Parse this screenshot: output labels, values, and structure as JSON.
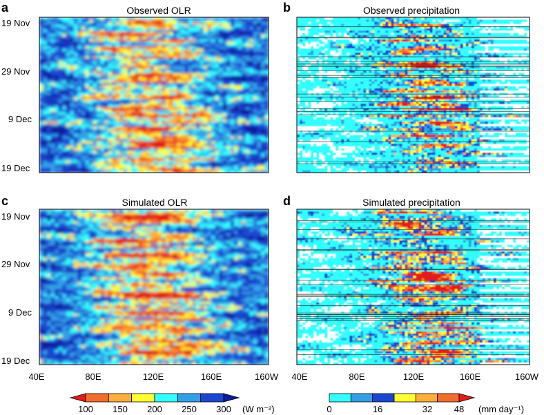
{
  "figure": {
    "panels": [
      {
        "letter": "a",
        "title": "Observed OLR",
        "variable": "OLR",
        "source": "observed"
      },
      {
        "letter": "b",
        "title": "Observed precipitation",
        "variable": "precipitation",
        "source": "observed"
      },
      {
        "letter": "c",
        "title": "Simulated OLR",
        "variable": "OLR",
        "source": "simulated"
      },
      {
        "letter": "d",
        "title": "Simulated precipitation",
        "variable": "precipitation",
        "source": "simulated"
      }
    ],
    "y_ticks": [
      "19 Nov",
      "29 Nov",
      "9 Dec",
      "19 Dec"
    ],
    "x_ticks": [
      "40E",
      "80E",
      "120E",
      "160E",
      "160W"
    ],
    "olr_colorbar": {
      "ticks": [
        "100",
        "150",
        "200",
        "250",
        "300"
      ],
      "unit": "(W m⁻²)",
      "colors": [
        "#e31a1c",
        "#f46d2a",
        "#fdae3a",
        "#ffff33",
        "#33ffff",
        "#33a0e6",
        "#1a46d1",
        "#0d1ba0"
      ]
    },
    "precip_colorbar": {
      "ticks": [
        "0",
        "16",
        "32",
        "48"
      ],
      "unit": "(mm day⁻¹)",
      "colors": [
        "#33ffff",
        "#33a0e6",
        "#1a46d1",
        "#ffff33",
        "#fdae3a",
        "#f46d2a",
        "#e31a1c"
      ]
    }
  },
  "chart_data": [
    {
      "type": "heatmap",
      "panel": "a",
      "title": "Observed OLR",
      "x_ticks": [
        "40E",
        "80E",
        "120E",
        "160E",
        "160W"
      ],
      "y_ticks": [
        "19 Nov",
        "29 Nov",
        "9 Dec",
        "19 Dec"
      ],
      "xlim": [
        40,
        200
      ],
      "colorbar_range": [
        100,
        300
      ],
      "unit": "W m-2",
      "note": "Low OLR (red/orange, ~100-180) in bands between 60E and 140E; high OLR (blue, ~250-300) elsewhere, especially east of 160E"
    },
    {
      "type": "heatmap",
      "panel": "b",
      "title": "Observed precipitation",
      "x_ticks": [
        "40E",
        "80E",
        "120E",
        "160E",
        "160W"
      ],
      "y_ticks": [
        "19 Nov",
        "29 Nov",
        "9 Dec",
        "19 Dec"
      ],
      "xlim": [
        40,
        200
      ],
      "colorbar_range": [
        0,
        48
      ],
      "unit": "mm day-1",
      "note": "Heavy rain (>32) scattered between 60E and 160E; zero-rain (white) bands east of 160E"
    },
    {
      "type": "heatmap",
      "panel": "c",
      "title": "Simulated OLR",
      "x_ticks": [
        "40E",
        "80E",
        "120E",
        "160E",
        "160W"
      ],
      "y_ticks": [
        "19 Nov",
        "29 Nov",
        "9 Dec",
        "19 Dec"
      ],
      "xlim": [
        40,
        200
      ],
      "colorbar_range": [
        100,
        300
      ],
      "unit": "W m-2",
      "note": "Low OLR blobs from 60E to 150E, eastward-shifting over time"
    },
    {
      "type": "heatmap",
      "panel": "d",
      "title": "Simulated precipitation",
      "x_ticks": [
        "40E",
        "80E",
        "120E",
        "160E",
        "160W"
      ],
      "y_ticks": [
        "19 Nov",
        "29 Nov",
        "9 Dec",
        "19 Dec"
      ],
      "xlim": [
        40,
        200
      ],
      "colorbar_range": [
        0,
        48
      ],
      "unit": "mm day-1",
      "note": "Heavy rain scattered between 60E and 160E with strong horizontal banding"
    }
  ]
}
